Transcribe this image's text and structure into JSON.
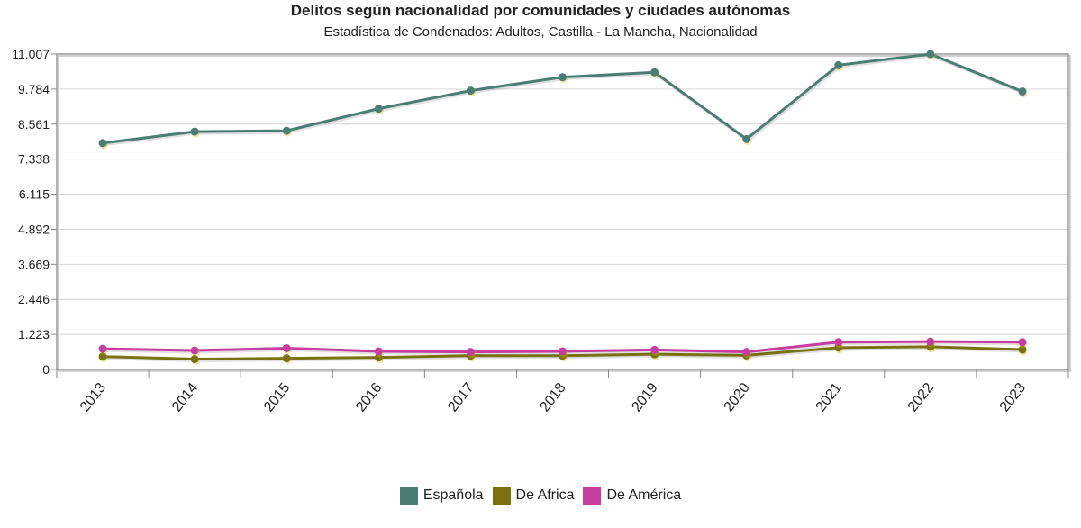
{
  "chart_data": {
    "type": "line",
    "title": "Delitos según nacionalidad por comunidades y ciudades autónomas",
    "subtitle": "Estadística de Condenados: Adultos, Castilla - La Mancha, Nacionalidad",
    "xlabel": "",
    "ylabel": "",
    "categories": [
      "2013",
      "2014",
      "2015",
      "2016",
      "2017",
      "2018",
      "2019",
      "2020",
      "2021",
      "2022",
      "2023"
    ],
    "ylim": [
      0,
      11007
    ],
    "yticks": [
      0,
      1223,
      2446,
      3669,
      4892,
      6115,
      7338,
      8561,
      9784,
      11007
    ],
    "ytick_labels": [
      "0",
      "1.223",
      "2.446",
      "3.669",
      "4.892",
      "6.115",
      "7.338",
      "8.561",
      "9.784",
      "11.007"
    ],
    "grid": true,
    "legend_position": "bottom",
    "series": [
      {
        "name": "Española",
        "color": "#4a7d74",
        "values": [
          7900,
          8300,
          8330,
          9100,
          9730,
          10200,
          10370,
          8040,
          10620,
          11007,
          9700
        ]
      },
      {
        "name": "De Africa",
        "color": "#7a7211",
        "values": [
          450,
          360,
          390,
          420,
          480,
          480,
          530,
          490,
          760,
          790,
          690
        ]
      },
      {
        "name": "De América",
        "color": "#c63fa0",
        "values": [
          720,
          660,
          740,
          630,
          610,
          630,
          680,
          610,
          950,
          970,
          950
        ]
      }
    ]
  }
}
